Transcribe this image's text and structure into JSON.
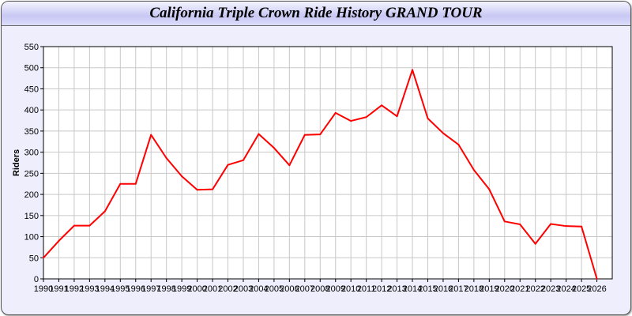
{
  "title": "California Triple Crown Ride History GRAND TOUR",
  "chart_data": {
    "type": "line",
    "title": "California Triple Crown Ride History GRAND TOUR",
    "xlabel": "",
    "ylabel": "Riders",
    "xlim": [
      1990,
      2027
    ],
    "ylim": [
      0,
      550
    ],
    "yticks": [
      0,
      50,
      100,
      150,
      200,
      250,
      300,
      350,
      400,
      450,
      500,
      550
    ],
    "grid": true,
    "line_color": "#ff0000",
    "x": [
      1990,
      1991,
      1992,
      1993,
      1994,
      1995,
      1996,
      1997,
      1998,
      1999,
      2000,
      2001,
      2002,
      2003,
      2004,
      2005,
      2006,
      2007,
      2008,
      2009,
      2010,
      2011,
      2012,
      2013,
      2014,
      2015,
      2016,
      2017,
      2018,
      2019,
      2020,
      2021,
      2022,
      2023,
      2024,
      2025,
      2026
    ],
    "values": [
      50,
      90,
      126,
      126,
      160,
      225,
      225,
      341,
      286,
      243,
      211,
      212,
      270,
      281,
      343,
      310,
      269,
      341,
      342,
      393,
      374,
      383,
      411,
      385,
      495,
      380,
      345,
      318,
      258,
      212,
      136,
      129,
      83,
      130,
      125,
      124,
      0
    ]
  }
}
